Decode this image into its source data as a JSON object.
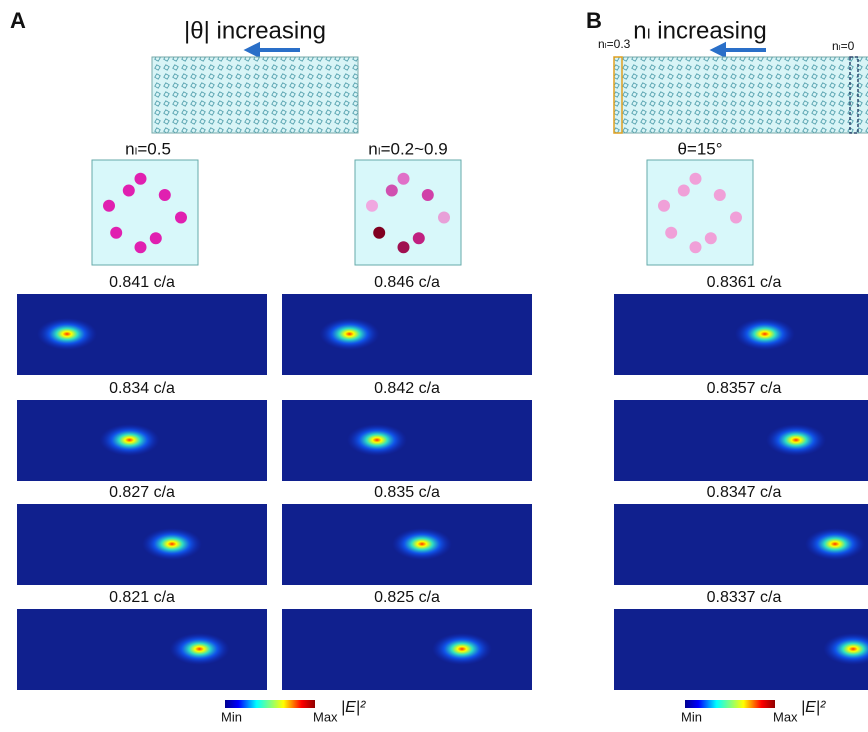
{
  "panel_a": {
    "letter": "A",
    "title": "|θ| increasing",
    "columns": [
      {
        "label": "nₗ=0.5",
        "frequencies": [
          "0.841 c/a",
          "0.834 c/a",
          "0.827 c/a",
          "0.821 c/a"
        ]
      },
      {
        "label": "nₗ=0.2~0.9",
        "frequencies": [
          "0.846 c/a",
          "0.842 c/a",
          "0.835 c/a",
          "0.825 c/a"
        ]
      }
    ],
    "colorbar": {
      "min": "Min",
      "max": "Max",
      "quantity": "|E|²"
    }
  },
  "panel_b": {
    "letter": "B",
    "title": "nₗ increasing",
    "left_label": "nₗ=0.3",
    "right_label": "nₗ=0",
    "columns": [
      {
        "label": "θ=15°",
        "frequencies": [
          "0.8361 c/a",
          "0.8357 c/a",
          "0.8347 c/a",
          "0.8337 c/a"
        ]
      }
    ],
    "colorbar": {
      "min": "Min",
      "max": "Max",
      "quantity": "|E|²"
    }
  }
}
